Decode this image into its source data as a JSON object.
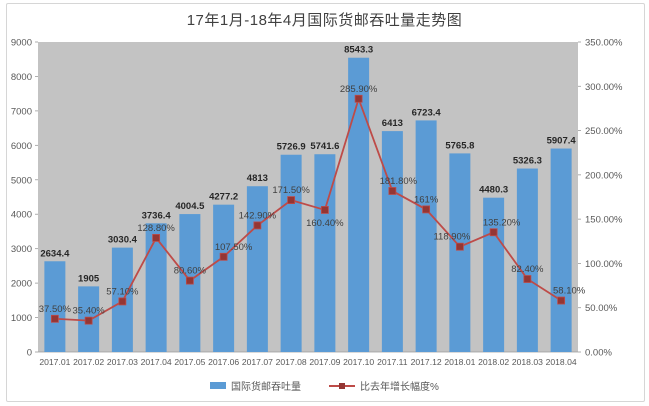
{
  "title": "17年1月-18年4月国际货邮吞吐量走势图",
  "colors": {
    "bar": "#5B9BD5",
    "line": "#BE4B48",
    "marker": "#943634",
    "plot_bg": "#C3C3C3",
    "axis_text": "#595959",
    "bar_label_text": "#262626",
    "pct_label_text": "#404040",
    "border": "#d6d6d6"
  },
  "chart_data": {
    "type": "bar-line-combo",
    "title": "17年1月-18年4月国际货邮吞吐量走势图",
    "categories": [
      "2017.01",
      "2017.02",
      "2017.03",
      "2017.04",
      "2017.05",
      "2017.06",
      "2017.07",
      "2017.08",
      "2017.09",
      "2017.10",
      "2017.11",
      "2017.12",
      "2018.01",
      "2018.02",
      "2018.03",
      "2018.04"
    ],
    "series": [
      {
        "name": "国际货邮吞吐量",
        "type": "bar",
        "y_axis": "left",
        "values": [
          2634.4,
          1905,
          3030.4,
          3736.4,
          4004.5,
          4277.2,
          4813,
          5726.9,
          5741.6,
          8543.3,
          6413,
          6723.4,
          5765.8,
          4480.3,
          5326.3,
          5907.4
        ],
        "labels": [
          "2634.4",
          "1905",
          "3030.4",
          "3736.4",
          "4004.5",
          "4277.2",
          "4813",
          "5726.9",
          "5741.6",
          "8543.3",
          "6413",
          "6723.4",
          "5765.8",
          "4480.3",
          "5326.3",
          "5907.4"
        ]
      },
      {
        "name": "比去年增长幅度%",
        "type": "line",
        "y_axis": "right",
        "values": [
          37.5,
          35.4,
          57.1,
          128.8,
          80.6,
          107.5,
          142.9,
          171.5,
          160.4,
          285.9,
          181.8,
          161,
          118.9,
          135.2,
          82.4,
          58.1
        ],
        "labels": [
          "37.50%",
          "35.40%",
          "57.10%",
          "128.80%",
          "80.60%",
          "107.50%",
          "142.90%",
          "171.50%",
          "160.40%",
          "285.90%",
          "181.80%",
          "161%",
          "118.90%",
          "135.20%",
          "82.40%",
          "58.10%"
        ]
      }
    ],
    "left_axis": {
      "min": 0,
      "max": 9000,
      "step": 1000,
      "ticks": [
        "0",
        "1000",
        "2000",
        "3000",
        "4000",
        "5000",
        "6000",
        "7000",
        "8000",
        "9000"
      ]
    },
    "right_axis": {
      "min": 0,
      "max": 350,
      "step": 50,
      "ticks": [
        "0.00%",
        "50.00%",
        "100.00%",
        "150.00%",
        "200.00%",
        "250.00%",
        "300.00%",
        "350.00%"
      ]
    },
    "legend": {
      "position": "bottom",
      "items": [
        "国际货邮吞吐量",
        "比去年增长幅度%"
      ]
    },
    "grid": false,
    "plot_area_background": "gray"
  }
}
